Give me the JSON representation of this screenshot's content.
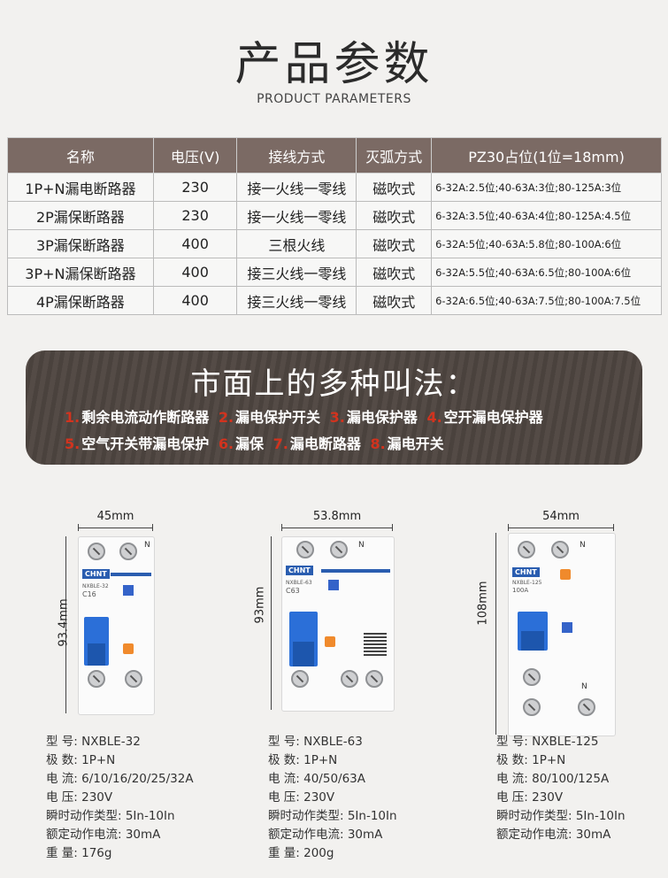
{
  "header": {
    "title": "产品参数",
    "subtitle": "PRODUCT PARAMETERS"
  },
  "table": {
    "columns": [
      "名称",
      "电压(V)",
      "接线方式",
      "灭弧方式",
      "PZ30占位(1位=18mm)"
    ],
    "rows": [
      [
        "1P+N漏电断路器",
        "230",
        "接一火线一零线",
        "磁吹式",
        "6-32A:2.5位;40-63A:3位;80-125A:3位"
      ],
      [
        "2P漏保断路器",
        "230",
        "接一火线一零线",
        "磁吹式",
        "6-32A:3.5位;40-63A:4位;80-125A:4.5位"
      ],
      [
        "3P漏保断路器",
        "400",
        "三根火线",
        "磁吹式",
        "6-32A:5位;40-63A:5.8位;80-100A:6位"
      ],
      [
        "3P+N漏保断路器",
        "400",
        "接三火线一零线",
        "磁吹式",
        "6-32A:5.5位;40-63A:6.5位;80-100A:6位"
      ],
      [
        "4P漏保断路器",
        "400",
        "接三火线一零线",
        "磁吹式",
        "6-32A:6.5位;40-63A:7.5位;80-100A:7.5位"
      ]
    ]
  },
  "banner": {
    "title": "市面上的多种叫法：",
    "line1": [
      {
        "num": "1.",
        "text": "剩余电流动作断路器"
      },
      {
        "num": "2.",
        "text": "漏电保护开关"
      },
      {
        "num": "3.",
        "text": "漏电保护器"
      },
      {
        "num": "4.",
        "text": "空开漏电保护器"
      }
    ],
    "line2": [
      {
        "num": "5.",
        "text": "空气开关带漏电保护"
      },
      {
        "num": "6.",
        "text": "漏保"
      },
      {
        "num": "7.",
        "text": "漏电断路器"
      },
      {
        "num": "8.",
        "text": "漏电开关"
      }
    ]
  },
  "products": [
    {
      "width": "45mm",
      "height": "93.4mm",
      "brand": "CHNT",
      "model_print": "NXBLE-32",
      "rating_print": "C16",
      "specs": {
        "model": "型  号: NXBLE-32",
        "poles": "极  数: 1P+N",
        "current": "电  流: 6/10/16/20/25/32A",
        "voltage": "电  压: 230V",
        "trip_type": "瞬时动作类型: 5In-10In",
        "rated_trip": "额定动作电流: 30mA",
        "weight": "重  量: 176g"
      }
    },
    {
      "width": "53.8mm",
      "height": "93mm",
      "brand": "CHNT",
      "model_print": "NXBLE-63",
      "rating_print": "C63",
      "specs": {
        "model": "型  号: NXBLE-63",
        "poles": "极  数: 1P+N",
        "current": "电  流: 40/50/63A",
        "voltage": "电  压: 230V",
        "trip_type": "瞬时动作类型: 5In-10In",
        "rated_trip": "额定动作电流: 30mA",
        "weight": "重  量: 200g"
      }
    },
    {
      "width": "54mm",
      "height": "108mm",
      "brand": "CHNT",
      "model_print": "NXBLE-125",
      "rating_print": "100A",
      "specs": {
        "model": "型  号: NXBLE-125",
        "poles": "极  数: 1P+N",
        "current": "电  流: 80/100/125A",
        "voltage": "电  压: 230V",
        "trip_type": "瞬时动作类型: 5In-10In",
        "rated_trip": "额定动作电流: 30mA"
      }
    }
  ],
  "colors": {
    "table_header": "#7b6a64",
    "banner_bg": "#4e4540",
    "accent_red": "#d2331e",
    "brand_blue": "#2a5db0",
    "handle_blue": "#2b6fd8"
  }
}
